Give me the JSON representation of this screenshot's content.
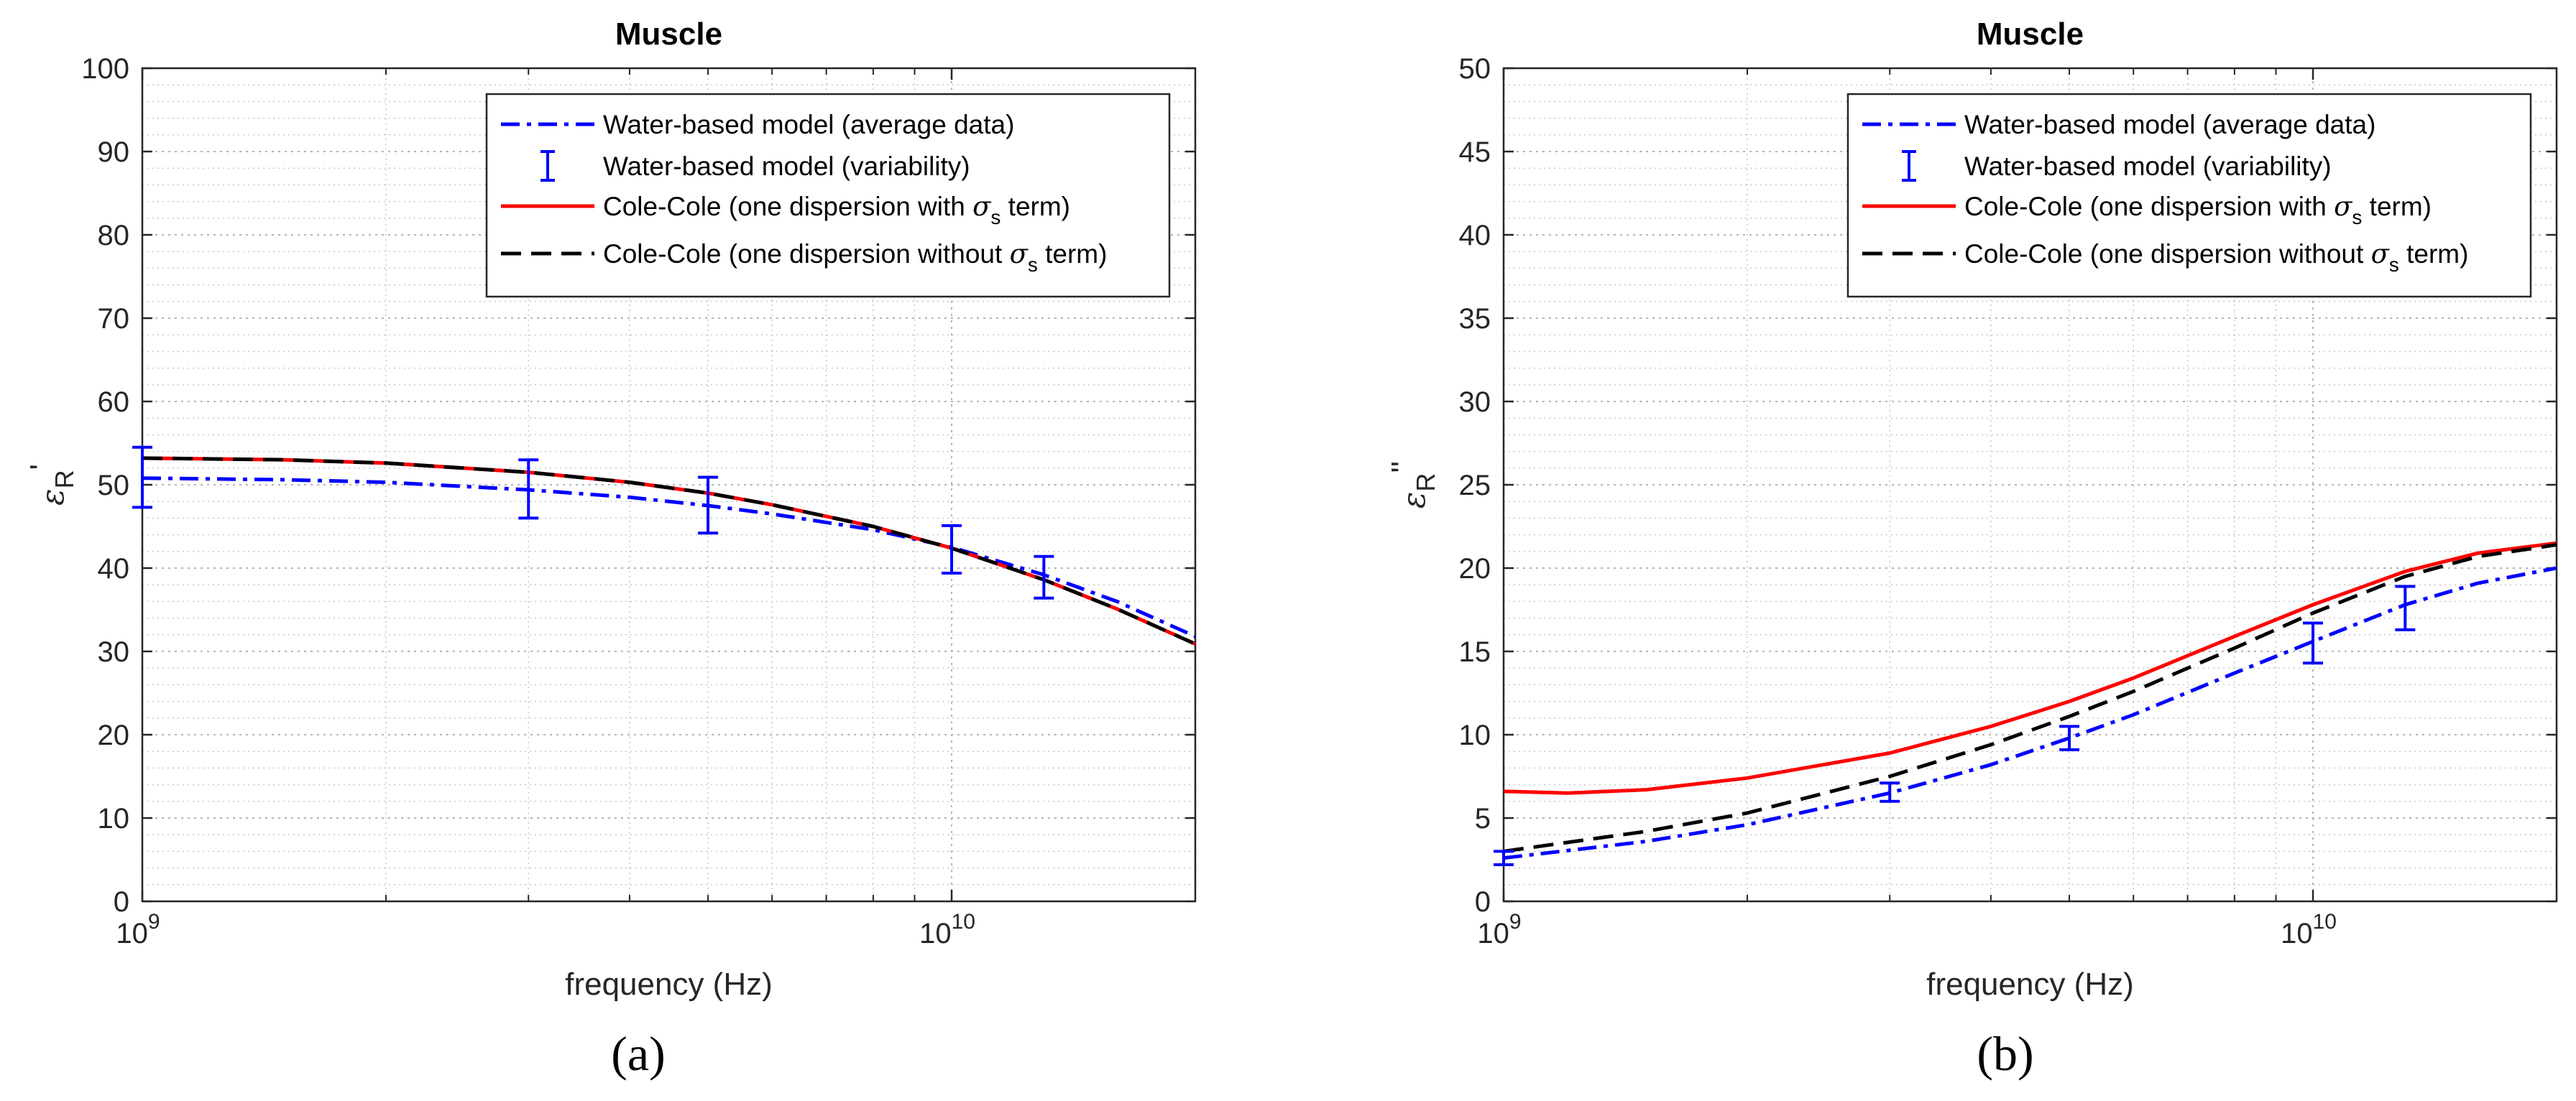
{
  "chart_data": [
    {
      "type": "line",
      "panel_label": "(a)",
      "title": "Muscle",
      "xlabel": "frequency (Hz)",
      "ylabel": "ε_R '",
      "ylabel_symbol": "ε",
      "ylabel_sub": "R",
      "ylabel_prime": "'",
      "xscale": "log",
      "xlim": [
        1000000000.0,
        20000000000.0
      ],
      "ylim": [
        0,
        100
      ],
      "x_ticks": [
        {
          "value": 1000000000.0,
          "base": "10",
          "exp": "9"
        },
        {
          "value": 10000000000.0,
          "base": "10",
          "exp": "10"
        }
      ],
      "y_ticks": [
        0,
        10,
        20,
        30,
        40,
        50,
        60,
        70,
        80,
        90,
        100
      ],
      "grid": true,
      "legend_position": "top-right",
      "series": [
        {
          "name": "Water-based model (average data)",
          "style": "dash-dot",
          "color": "#0000ff",
          "x": [
            1000000000.0,
            1500000000.0,
            2000000000.0,
            3000000000.0,
            4000000000.0,
            5000000000.0,
            6000000000.0,
            8000000000.0,
            10000000000.0,
            13000000000.0,
            16000000000.0,
            20000000000.0
          ],
          "y": [
            50.8,
            50.6,
            50.3,
            49.4,
            48.5,
            47.5,
            46.5,
            44.6,
            42.5,
            39.2,
            36.0,
            31.8
          ]
        },
        {
          "name": "Water-based model (variability)",
          "style": "errorbar",
          "color": "#0000ff",
          "x": [
            1000000000.0,
            3000000000.0,
            5000000000.0,
            10000000000.0,
            13000000000.0
          ],
          "y": [
            50.8,
            49.4,
            47.5,
            42.3,
            38.9
          ],
          "lower": [
            47.3,
            46.0,
            44.2,
            39.4,
            36.4
          ],
          "upper": [
            54.5,
            53.0,
            50.9,
            45.1,
            41.4
          ]
        },
        {
          "name": "Cole-Cole (one dispersion with σs term)",
          "style": "solid",
          "color": "#ff0000",
          "x": [
            1000000000.0,
            1500000000.0,
            2000000000.0,
            3000000000.0,
            4000000000.0,
            5000000000.0,
            6000000000.0,
            8000000000.0,
            10000000000.0,
            13000000000.0,
            16000000000.0,
            20000000000.0
          ],
          "y": [
            53.2,
            53.0,
            52.6,
            51.5,
            50.3,
            49.0,
            47.6,
            45.0,
            42.4,
            38.6,
            35.1,
            30.9
          ]
        },
        {
          "name": "Cole-Cole (one dispersion without σs term)",
          "style": "dashed",
          "color": "#000000",
          "x": [
            1000000000.0,
            1500000000.0,
            2000000000.0,
            3000000000.0,
            4000000000.0,
            5000000000.0,
            6000000000.0,
            8000000000.0,
            10000000000.0,
            13000000000.0,
            16000000000.0,
            20000000000.0
          ],
          "y": [
            53.2,
            53.0,
            52.6,
            51.5,
            50.3,
            49.0,
            47.6,
            45.0,
            42.4,
            38.6,
            35.1,
            30.9
          ]
        }
      ],
      "legend": [
        {
          "text": "Water-based model (average data)",
          "sigma": false
        },
        {
          "text": "Water-based model (variability)",
          "sigma": false
        },
        {
          "text": "Cole-Cole (one dispersion with ",
          "sigma": true,
          "sigma_sym": "σ",
          "sigma_sub": "s",
          "suffix": " term)"
        },
        {
          "text": "Cole-Cole (one dispersion without ",
          "sigma": true,
          "sigma_sym": "σ",
          "sigma_sub": "s",
          "suffix": " term)"
        }
      ]
    },
    {
      "type": "line",
      "panel_label": "(b)",
      "title": "Muscle",
      "xlabel": "frequency (Hz)",
      "ylabel": "ε_R ''",
      "ylabel_symbol": "ε",
      "ylabel_sub": "R",
      "ylabel_prime": "''",
      "xscale": "log",
      "xlim": [
        1000000000.0,
        20000000000.0
      ],
      "ylim": [
        0,
        50
      ],
      "x_ticks": [
        {
          "value": 1000000000.0,
          "base": "10",
          "exp": "9"
        },
        {
          "value": 10000000000.0,
          "base": "10",
          "exp": "10"
        }
      ],
      "y_ticks": [
        0,
        5,
        10,
        15,
        20,
        25,
        30,
        35,
        40,
        45,
        50
      ],
      "grid": true,
      "legend_position": "top-right",
      "series": [
        {
          "name": "Water-based model (average data)",
          "style": "dash-dot",
          "color": "#0000ff",
          "x": [
            1000000000.0,
            1500000000.0,
            2000000000.0,
            3000000000.0,
            4000000000.0,
            5000000000.0,
            6000000000.0,
            8000000000.0,
            10000000000.0,
            13000000000.0,
            16000000000.0,
            20000000000.0
          ],
          "y": [
            2.6,
            3.6,
            4.6,
            6.5,
            8.2,
            9.8,
            11.2,
            13.7,
            15.6,
            17.8,
            19.1,
            20.0
          ]
        },
        {
          "name": "Water-based model (variability)",
          "style": "errorbar",
          "color": "#0000ff",
          "x": [
            1000000000.0,
            3000000000.0,
            5000000000.0,
            10000000000.0,
            13000000000.0
          ],
          "y": [
            2.6,
            6.6,
            9.8,
            15.5,
            17.6
          ],
          "lower": [
            2.2,
            6.0,
            9.1,
            14.3,
            16.3
          ],
          "upper": [
            3.0,
            7.1,
            10.5,
            16.7,
            18.9
          ]
        },
        {
          "name": "Cole-Cole (one dispersion with σs term)",
          "style": "solid",
          "color": "#ff0000",
          "x": [
            1000000000.0,
            1200000000.0,
            1500000000.0,
            2000000000.0,
            3000000000.0,
            4000000000.0,
            5000000000.0,
            6000000000.0,
            8000000000.0,
            10000000000.0,
            13000000000.0,
            16000000000.0,
            20000000000.0
          ],
          "y": [
            6.6,
            6.5,
            6.7,
            7.4,
            8.9,
            10.5,
            12.0,
            13.4,
            15.9,
            17.8,
            19.8,
            20.9,
            21.5
          ]
        },
        {
          "name": "Cole-Cole (one dispersion without σs term)",
          "style": "dashed",
          "color": "#000000",
          "x": [
            1000000000.0,
            1500000000.0,
            2000000000.0,
            3000000000.0,
            4000000000.0,
            5000000000.0,
            6000000000.0,
            8000000000.0,
            10000000000.0,
            13000000000.0,
            16000000000.0,
            20000000000.0
          ],
          "y": [
            3.0,
            4.2,
            5.3,
            7.5,
            9.4,
            11.1,
            12.6,
            15.2,
            17.3,
            19.5,
            20.7,
            21.4
          ]
        }
      ],
      "legend": [
        {
          "text": "Water-based model (average data)",
          "sigma": false
        },
        {
          "text": "Water-based model (variability)",
          "sigma": false
        },
        {
          "text": "Cole-Cole (one dispersion with ",
          "sigma": true,
          "sigma_sym": "σ",
          "sigma_sub": "s",
          "suffix": " term)"
        },
        {
          "text": "Cole-Cole (one dispersion without ",
          "sigma": true,
          "sigma_sym": "σ",
          "sigma_sub": "s",
          "suffix": " term)"
        }
      ]
    }
  ]
}
